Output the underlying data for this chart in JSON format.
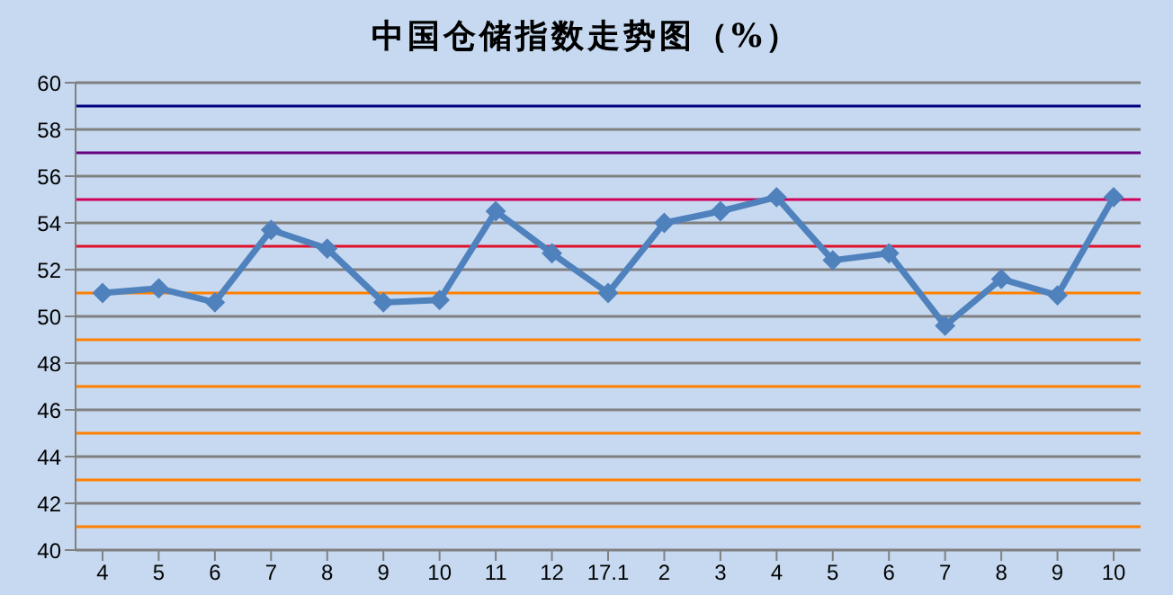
{
  "chart_data": {
    "type": "line",
    "title": "中国仓储指数走势图（%）",
    "categories": [
      "4",
      "5",
      "6",
      "7",
      "8",
      "9",
      "10",
      "11",
      "12",
      "17.1",
      "2",
      "3",
      "4",
      "5",
      "6",
      "7",
      "8",
      "9",
      "10"
    ],
    "series": [
      {
        "color": "#4f81bd",
        "values": [
          51.0,
          51.2,
          50.6,
          53.7,
          52.9,
          50.6,
          50.7,
          54.5,
          52.7,
          51.0,
          54.0,
          54.5,
          55.1,
          52.4,
          52.7,
          49.6,
          51.6,
          50.9,
          55.1
        ]
      }
    ],
    "ylim": [
      40,
      60
    ],
    "yticks": [
      40,
      42,
      44,
      46,
      48,
      50,
      52,
      54,
      56,
      58,
      60
    ],
    "grid": "y",
    "marker": "diamond",
    "line_style": "solid",
    "legend": false,
    "ref_lines": [
      {
        "axis": "y",
        "value": 41,
        "color": "#ff8000"
      },
      {
        "axis": "y",
        "value": 43,
        "color": "#ff8000"
      },
      {
        "axis": "y",
        "value": 45,
        "color": "#ff8000"
      },
      {
        "axis": "y",
        "value": 47,
        "color": "#ff8000"
      },
      {
        "axis": "y",
        "value": 49,
        "color": "#ff8000"
      },
      {
        "axis": "y",
        "value": 51,
        "color": "#ff8000"
      },
      {
        "axis": "y",
        "value": 53,
        "color": "#e0102a"
      },
      {
        "axis": "y",
        "value": 55,
        "color": "#d0005a"
      },
      {
        "axis": "y",
        "value": 57,
        "color": "#660080"
      },
      {
        "axis": "y",
        "value": 59,
        "color": "#000080"
      }
    ]
  }
}
